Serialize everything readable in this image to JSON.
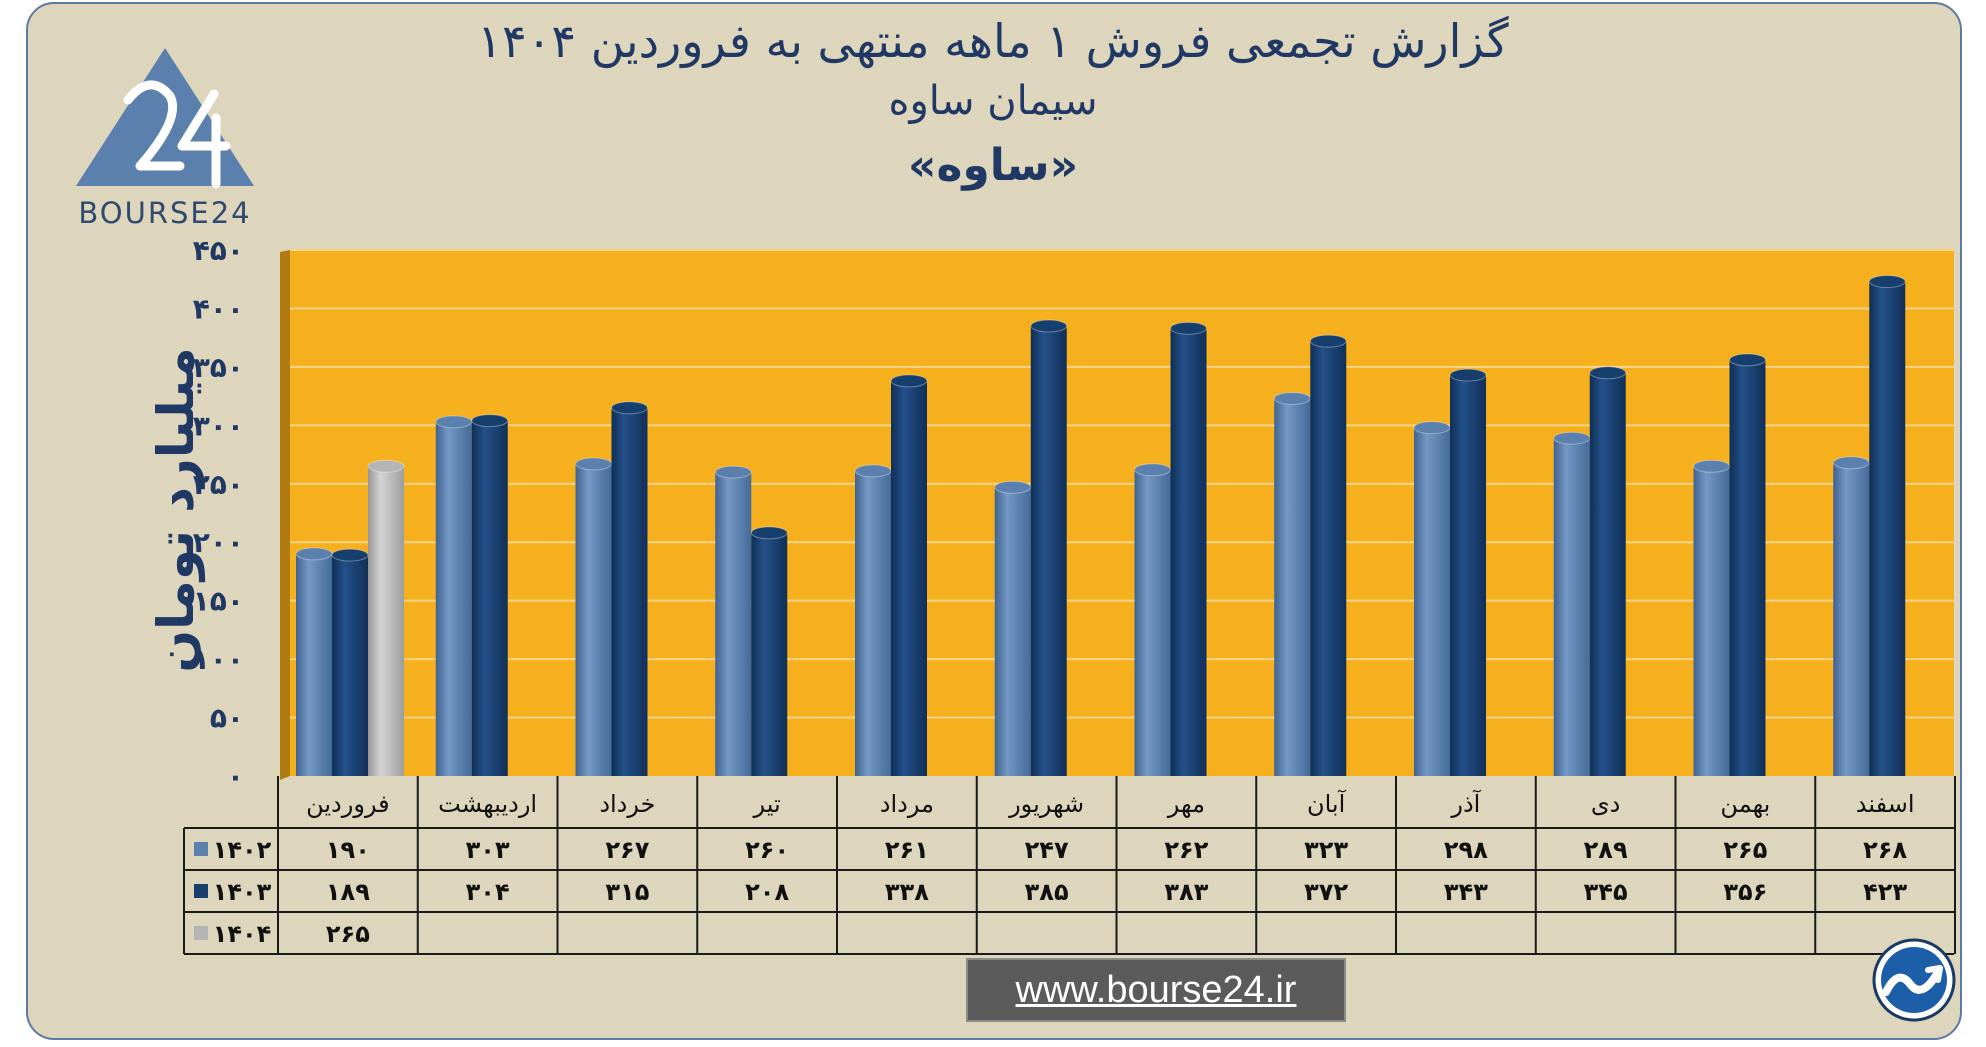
{
  "header": {
    "title_line1": "گزارش تجمعی فروش ۱ ماهه منتهی به فروردین ۱۴۰۴",
    "title_line2": "سیمان ساوه",
    "title_line3": "«ساوه»"
  },
  "logo": {
    "text": "BOURSE24",
    "icon": "bourse24-logo-icon"
  },
  "footer": {
    "url": "www.bourse24.ir",
    "icon": "bourse24-trend-icon"
  },
  "colors": {
    "plot_bg": "#f6b01d",
    "series_1402": "#5b80ad",
    "series_1403": "#173f6e",
    "series_1404": "#b4b4b4",
    "text": "#1f3864"
  },
  "chart_data": {
    "type": "bar",
    "ylabel": "میلیارد تومان",
    "ylim": [
      0,
      450
    ],
    "yticks": [
      "۰",
      "۵۰",
      "۱۰۰",
      "۱۵۰",
      "۲۰۰",
      "۲۵۰",
      "۳۰۰",
      "۳۵۰",
      "۴۰۰",
      "۴۵۰"
    ],
    "grid": true,
    "categories": [
      "فروردین",
      "اردیبهشت",
      "خرداد",
      "تیر",
      "مرداد",
      "شهریور",
      "مهر",
      "آبان",
      "آذر",
      "دی",
      "بهمن",
      "اسفند"
    ],
    "series": [
      {
        "name": "۱۴۰۲",
        "values": [
          190,
          303,
          267,
          260,
          261,
          247,
          262,
          323,
          298,
          289,
          265,
          268
        ],
        "labels": [
          "۱۹۰",
          "۳۰۳",
          "۲۶۷",
          "۲۶۰",
          "۲۶۱",
          "۲۴۷",
          "۲۶۲",
          "۳۲۳",
          "۲۹۸",
          "۲۸۹",
          "۲۶۵",
          "۲۶۸"
        ]
      },
      {
        "name": "۱۴۰۳",
        "values": [
          189,
          304,
          315,
          208,
          338,
          385,
          383,
          372,
          343,
          345,
          356,
          423
        ],
        "labels": [
          "۱۸۹",
          "۳۰۴",
          "۳۱۵",
          "۲۰۸",
          "۳۳۸",
          "۳۸۵",
          "۳۸۳",
          "۳۷۲",
          "۳۴۳",
          "۳۴۵",
          "۳۵۶",
          "۴۲۳"
        ]
      },
      {
        "name": "۱۴۰۴",
        "values": [
          265,
          null,
          null,
          null,
          null,
          null,
          null,
          null,
          null,
          null,
          null,
          null
        ],
        "labels": [
          "۲۶۵",
          "",
          "",
          "",
          "",
          "",
          "",
          "",
          "",
          "",
          "",
          ""
        ]
      }
    ]
  }
}
